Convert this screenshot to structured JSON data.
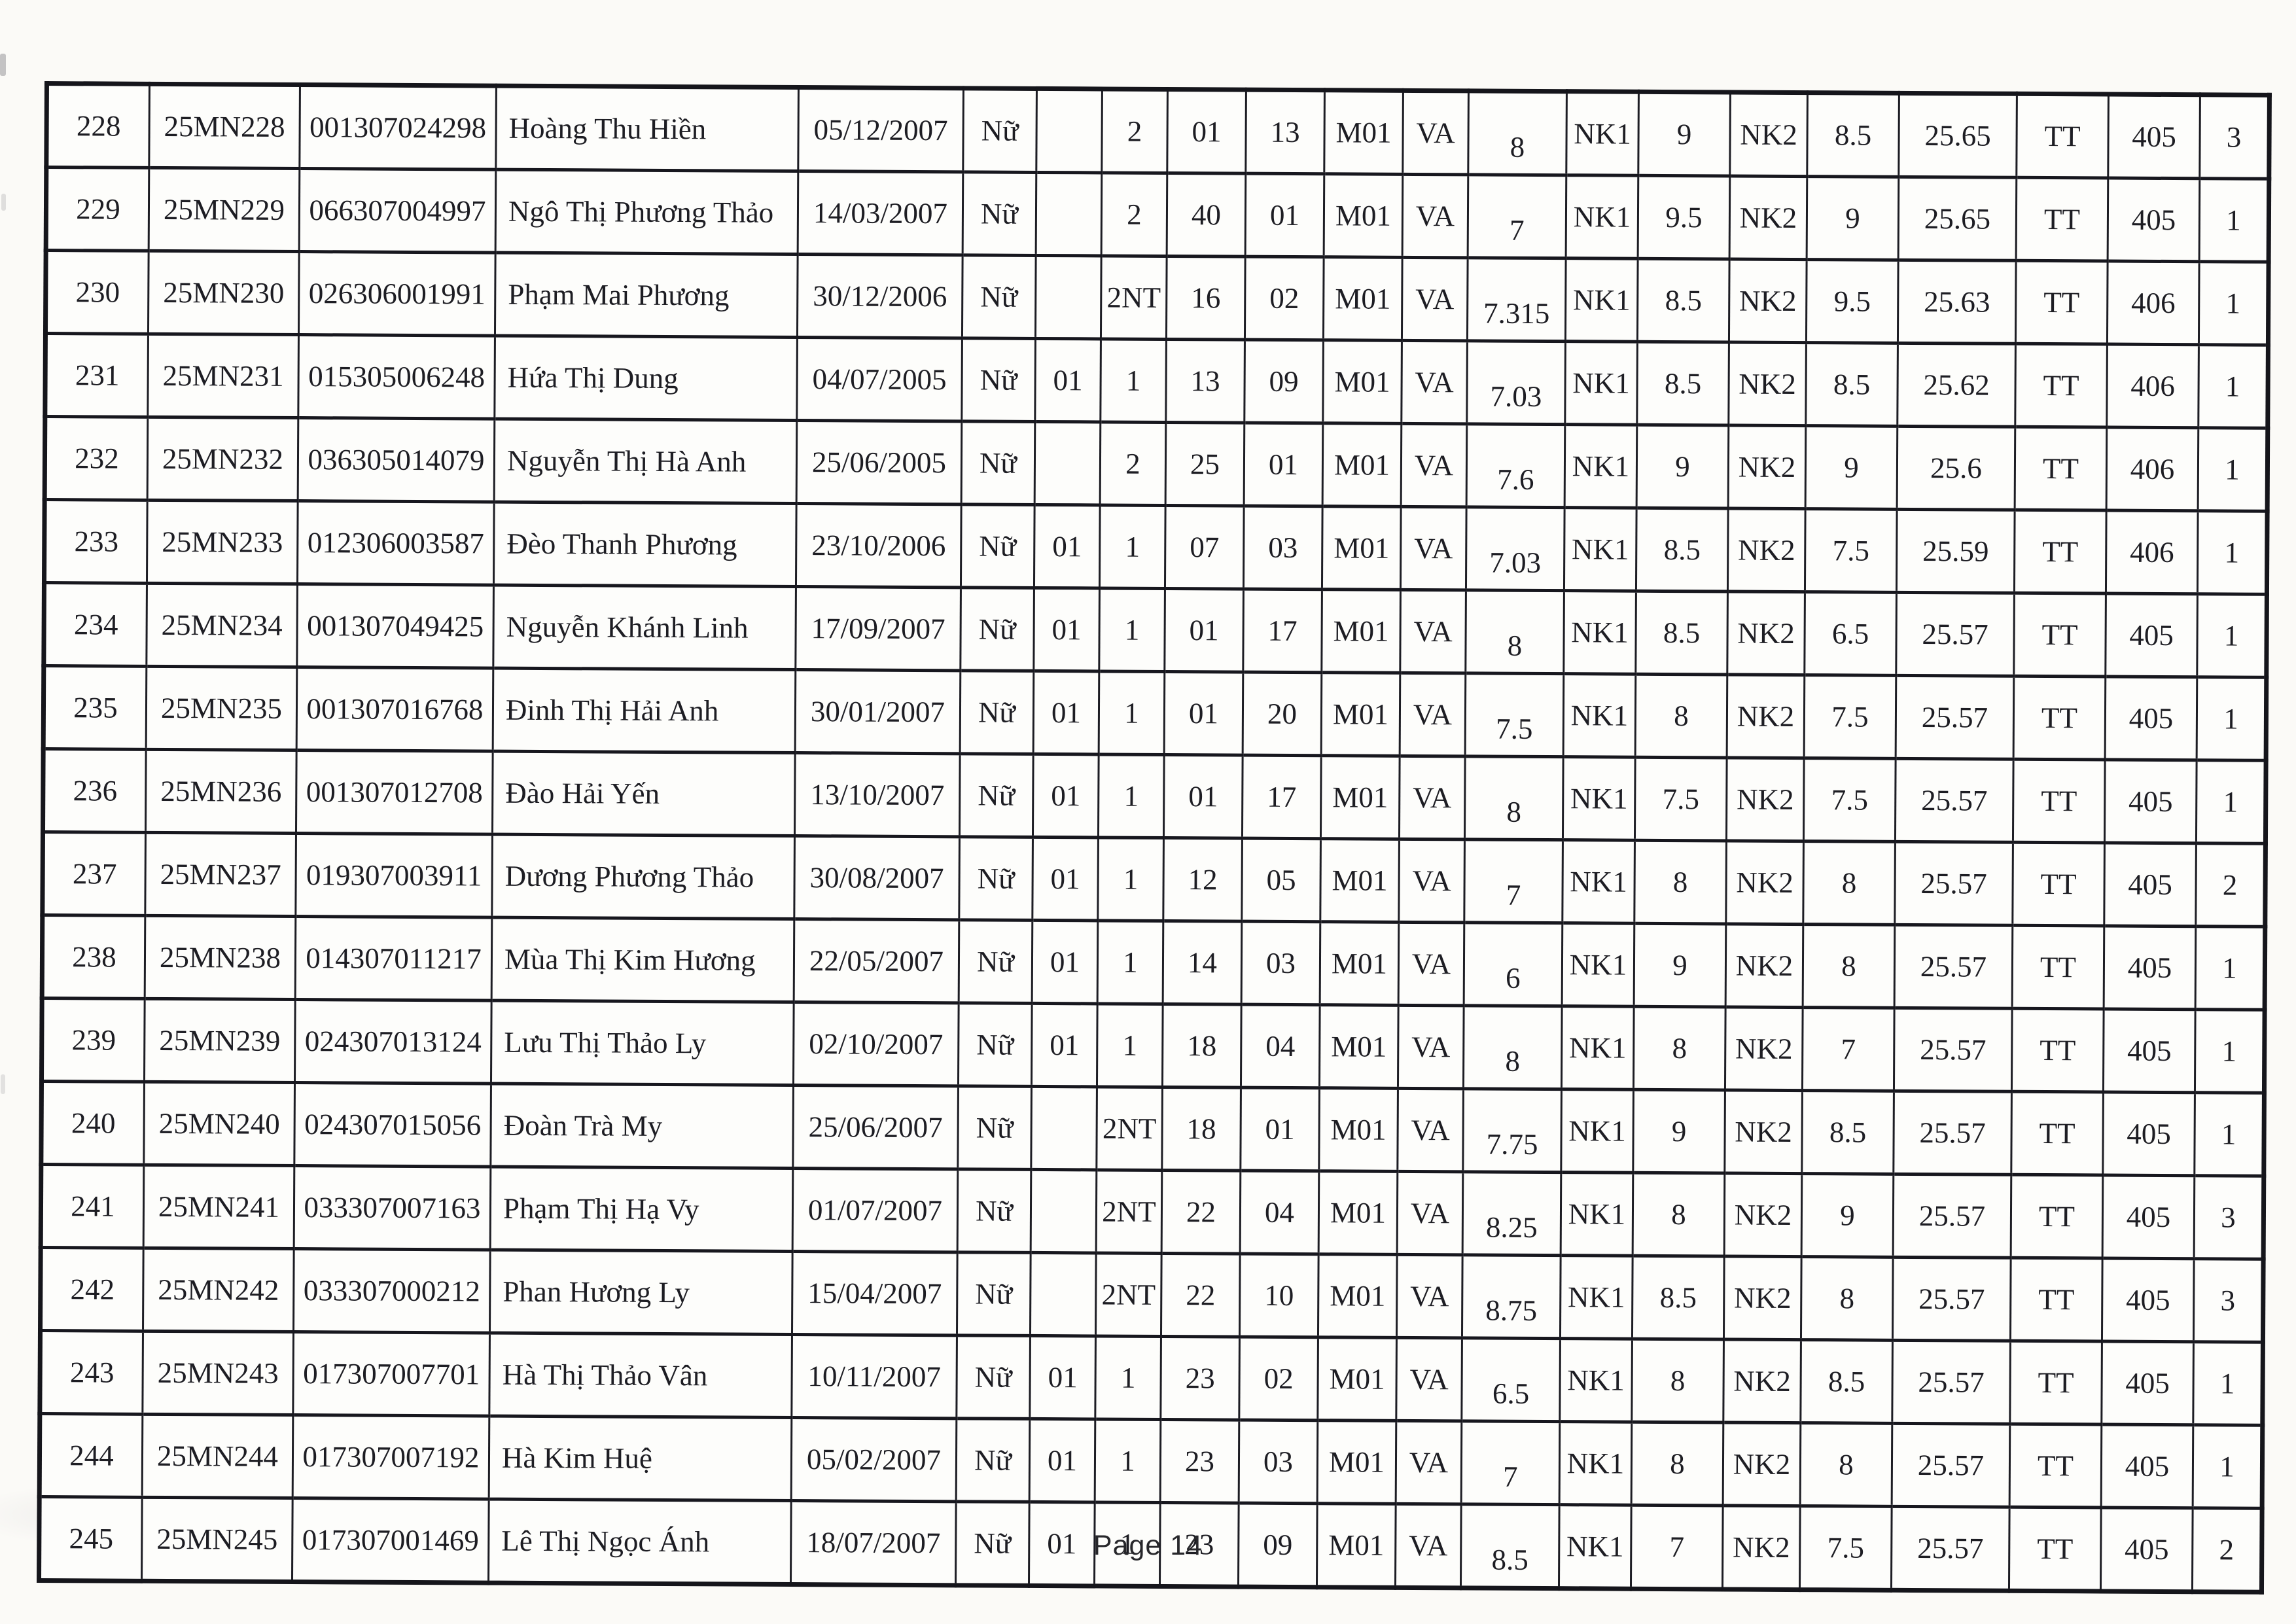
{
  "page": {
    "footer": "Page 14",
    "background_color": "#fbfaf7",
    "border_color": "#15151b"
  },
  "table": {
    "column_keys": [
      "index",
      "candidate_code",
      "id_number",
      "full_name",
      "date_of_birth",
      "gender",
      "priority",
      "area",
      "code_a",
      "code_b",
      "subject_code",
      "subject",
      "subject_score",
      "nk1_label",
      "nk1_score",
      "nk2_label",
      "nk2_score",
      "total_score",
      "tt_label",
      "group_code",
      "order"
    ],
    "rows": [
      [
        "228",
        "25MN228",
        "001307024298",
        "Hoàng Thu Hiền",
        "05/12/2007",
        "Nữ",
        "",
        "2",
        "01",
        "13",
        "M01",
        "VA",
        "8",
        "NK1",
        "9",
        "NK2",
        "8.5",
        "25.65",
        "TT",
        "405",
        "3"
      ],
      [
        "229",
        "25MN229",
        "066307004997",
        "Ngô Thị Phương Thảo",
        "14/03/2007",
        "Nữ",
        "",
        "2",
        "40",
        "01",
        "M01",
        "VA",
        "7",
        "NK1",
        "9.5",
        "NK2",
        "9",
        "25.65",
        "TT",
        "405",
        "1"
      ],
      [
        "230",
        "25MN230",
        "026306001991",
        "Phạm Mai Phương",
        "30/12/2006",
        "Nữ",
        "",
        "2NT",
        "16",
        "02",
        "M01",
        "VA",
        "7.315",
        "NK1",
        "8.5",
        "NK2",
        "9.5",
        "25.63",
        "TT",
        "406",
        "1"
      ],
      [
        "231",
        "25MN231",
        "015305006248",
        "Hứa Thị Dung",
        "04/07/2005",
        "Nữ",
        "01",
        "1",
        "13",
        "09",
        "M01",
        "VA",
        "7.03",
        "NK1",
        "8.5",
        "NK2",
        "8.5",
        "25.62",
        "TT",
        "406",
        "1"
      ],
      [
        "232",
        "25MN232",
        "036305014079",
        "Nguyễn Thị Hà Anh",
        "25/06/2005",
        "Nữ",
        "",
        "2",
        "25",
        "01",
        "M01",
        "VA",
        "7.6",
        "NK1",
        "9",
        "NK2",
        "9",
        "25.6",
        "TT",
        "406",
        "1"
      ],
      [
        "233",
        "25MN233",
        "012306003587",
        "Đèo Thanh Phương",
        "23/10/2006",
        "Nữ",
        "01",
        "1",
        "07",
        "03",
        "M01",
        "VA",
        "7.03",
        "NK1",
        "8.5",
        "NK2",
        "7.5",
        "25.59",
        "TT",
        "406",
        "1"
      ],
      [
        "234",
        "25MN234",
        "001307049425",
        "Nguyễn Khánh Linh",
        "17/09/2007",
        "Nữ",
        "01",
        "1",
        "01",
        "17",
        "M01",
        "VA",
        "8",
        "NK1",
        "8.5",
        "NK2",
        "6.5",
        "25.57",
        "TT",
        "405",
        "1"
      ],
      [
        "235",
        "25MN235",
        "001307016768",
        "Đinh Thị Hải Anh",
        "30/01/2007",
        "Nữ",
        "01",
        "1",
        "01",
        "20",
        "M01",
        "VA",
        "7.5",
        "NK1",
        "8",
        "NK2",
        "7.5",
        "25.57",
        "TT",
        "405",
        "1"
      ],
      [
        "236",
        "25MN236",
        "001307012708",
        "Đào Hải Yến",
        "13/10/2007",
        "Nữ",
        "01",
        "1",
        "01",
        "17",
        "M01",
        "VA",
        "8",
        "NK1",
        "7.5",
        "NK2",
        "7.5",
        "25.57",
        "TT",
        "405",
        "1"
      ],
      [
        "237",
        "25MN237",
        "019307003911",
        "Dương Phương Thảo",
        "30/08/2007",
        "Nữ",
        "01",
        "1",
        "12",
        "05",
        "M01",
        "VA",
        "7",
        "NK1",
        "8",
        "NK2",
        "8",
        "25.57",
        "TT",
        "405",
        "2"
      ],
      [
        "238",
        "25MN238",
        "014307011217",
        "Mùa Thị Kim Hương",
        "22/05/2007",
        "Nữ",
        "01",
        "1",
        "14",
        "03",
        "M01",
        "VA",
        "6",
        "NK1",
        "9",
        "NK2",
        "8",
        "25.57",
        "TT",
        "405",
        "1"
      ],
      [
        "239",
        "25MN239",
        "024307013124",
        "Lưu Thị Thảo Ly",
        "02/10/2007",
        "Nữ",
        "01",
        "1",
        "18",
        "04",
        "M01",
        "VA",
        "8",
        "NK1",
        "8",
        "NK2",
        "7",
        "25.57",
        "TT",
        "405",
        "1"
      ],
      [
        "240",
        "25MN240",
        "024307015056",
        "Đoàn Trà My",
        "25/06/2007",
        "Nữ",
        "",
        "2NT",
        "18",
        "01",
        "M01",
        "VA",
        "7.75",
        "NK1",
        "9",
        "NK2",
        "8.5",
        "25.57",
        "TT",
        "405",
        "1"
      ],
      [
        "241",
        "25MN241",
        "033307007163",
        "Phạm Thị Hạ Vy",
        "01/07/2007",
        "Nữ",
        "",
        "2NT",
        "22",
        "04",
        "M01",
        "VA",
        "8.25",
        "NK1",
        "8",
        "NK2",
        "9",
        "25.57",
        "TT",
        "405",
        "3"
      ],
      [
        "242",
        "25MN242",
        "033307000212",
        "Phan Hương Ly",
        "15/04/2007",
        "Nữ",
        "",
        "2NT",
        "22",
        "10",
        "M01",
        "VA",
        "8.75",
        "NK1",
        "8.5",
        "NK2",
        "8",
        "25.57",
        "TT",
        "405",
        "3"
      ],
      [
        "243",
        "25MN243",
        "017307007701",
        "Hà Thị Thảo Vân",
        "10/11/2007",
        "Nữ",
        "01",
        "1",
        "23",
        "02",
        "M01",
        "VA",
        "6.5",
        "NK1",
        "8",
        "NK2",
        "8.5",
        "25.57",
        "TT",
        "405",
        "1"
      ],
      [
        "244",
        "25MN244",
        "017307007192",
        "Hà Kim Huệ",
        "05/02/2007",
        "Nữ",
        "01",
        "1",
        "23",
        "03",
        "M01",
        "VA",
        "7",
        "NK1",
        "8",
        "NK2",
        "8",
        "25.57",
        "TT",
        "405",
        "1"
      ],
      [
        "245",
        "25MN245",
        "017307001469",
        "Lê Thị Ngọc Ánh",
        "18/07/2007",
        "Nữ",
        "01",
        "1",
        "23",
        "09",
        "M01",
        "VA",
        "8.5",
        "NK1",
        "7",
        "NK2",
        "7.5",
        "25.57",
        "TT",
        "405",
        "2"
      ]
    ]
  }
}
